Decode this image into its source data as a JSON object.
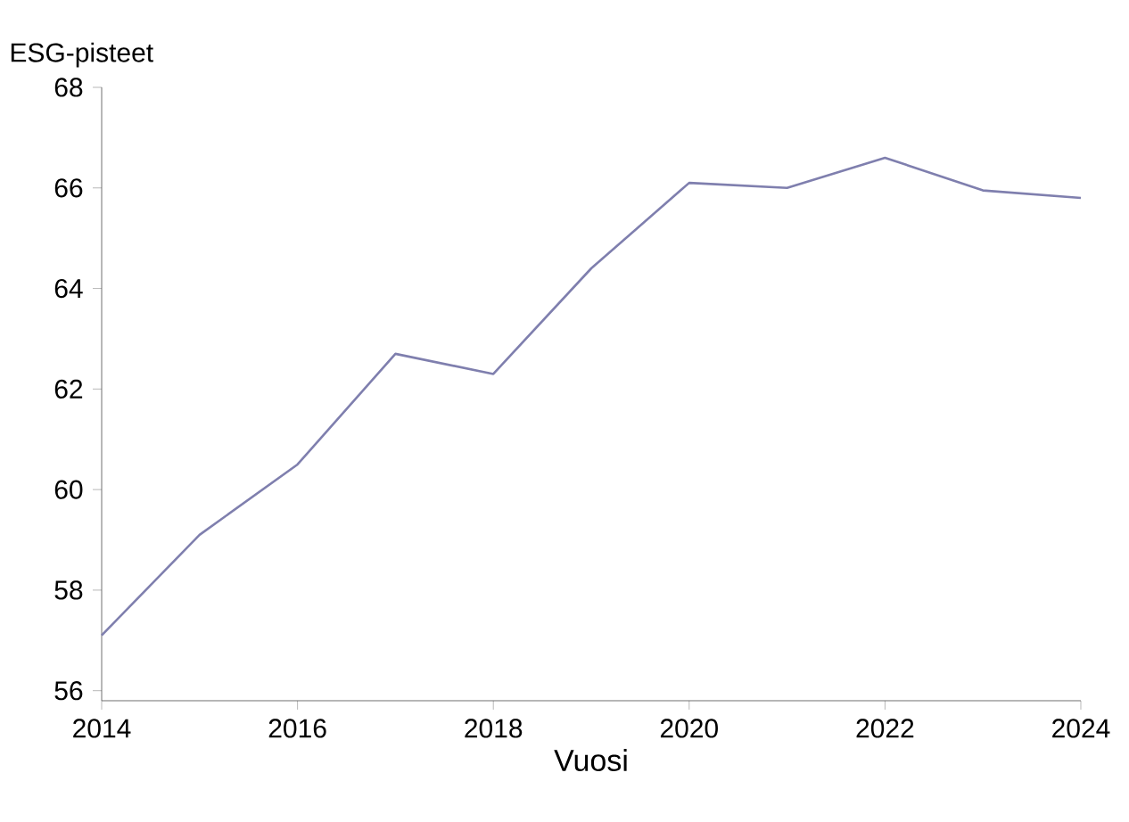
{
  "chart_data": {
    "type": "line",
    "xlabel": "Vuosi",
    "ylabel": "ESG-pisteet",
    "x": [
      2014,
      2015,
      2016,
      2017,
      2018,
      2019,
      2020,
      2021,
      2022,
      2023,
      2024
    ],
    "series": [
      {
        "color": "#7f7fae",
        "values": [
          57.1,
          59.1,
          60.5,
          62.7,
          62.3,
          64.4,
          66.1,
          66.0,
          66.6,
          65.95,
          65.8
        ]
      }
    ],
    "xlim": [
      2014,
      2024
    ],
    "xticks": [
      2014,
      2016,
      2018,
      2020,
      2022,
      2024
    ],
    "ylim": [
      55.8,
      68
    ],
    "yticks": [
      56,
      58,
      60,
      62,
      64,
      66,
      68
    ],
    "marker": "none",
    "line_style": "solid"
  }
}
